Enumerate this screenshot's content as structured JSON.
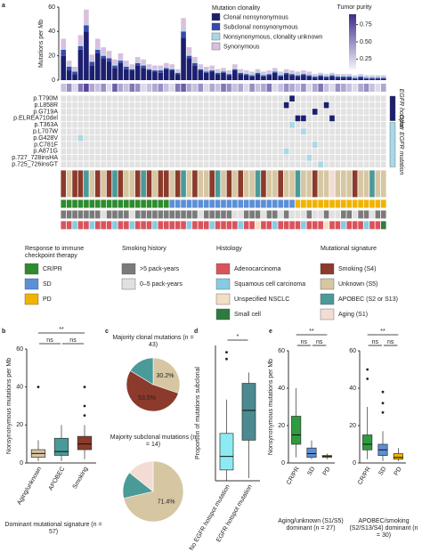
{
  "chart_data": [
    {
      "type": "oncoprint",
      "label": "a",
      "y_label": "Mutations per Mb",
      "ylim": [
        0,
        60
      ],
      "yticks": [
        0,
        20,
        40,
        60
      ],
      "legend_title": "Mutation clonality",
      "series": [
        {
          "name": "Clonal nonsynonymous",
          "color": "#1b1f6e",
          "values": [
            20,
            8,
            5,
            25,
            40,
            12,
            22,
            18,
            15,
            10,
            14,
            9,
            8,
            12,
            10,
            8,
            7,
            6,
            9,
            8,
            5,
            35,
            18,
            12,
            8,
            6,
            7,
            5,
            6,
            4,
            8,
            5,
            4,
            3,
            5,
            3,
            4,
            6,
            3,
            5,
            4,
            3,
            4,
            3,
            2,
            3,
            2,
            3,
            2,
            2,
            2,
            1,
            2,
            1,
            1,
            1,
            1
          ]
        },
        {
          "name": "Subclonal nonsynonymous",
          "color": "#3949ab",
          "values": [
            5,
            3,
            2,
            3,
            5,
            3,
            3,
            2,
            3,
            2,
            2,
            2,
            1,
            2,
            2,
            1,
            1,
            2,
            1,
            1,
            1,
            5,
            2,
            2,
            1,
            1,
            1,
            1,
            1,
            1,
            1,
            1,
            1,
            1,
            1,
            1,
            1,
            1,
            1,
            1,
            1,
            1,
            1,
            1,
            1,
            1,
            1,
            1,
            1,
            1,
            1,
            1,
            1,
            1,
            1,
            1,
            1
          ]
        },
        {
          "name": "Nonsynonymous, clonality unknown",
          "color": "#a9d8e6",
          "values": [
            1,
            1,
            1,
            1,
            1,
            1,
            1,
            1,
            1,
            1,
            1,
            1,
            1,
            1,
            1,
            1,
            1,
            1,
            1,
            1,
            1,
            1,
            1,
            1,
            1,
            1,
            1,
            1,
            1,
            1,
            1,
            1,
            1,
            1,
            1,
            1,
            1,
            1,
            1,
            1,
            1,
            1,
            1,
            1,
            1,
            1,
            1,
            1,
            1,
            1,
            1,
            1,
            1,
            1,
            1,
            1,
            1
          ]
        },
        {
          "name": "Synonymous",
          "color": "#d8c0de",
          "values": [
            8,
            4,
            3,
            8,
            12,
            5,
            8,
            6,
            5,
            4,
            5,
            4,
            3,
            4,
            4,
            3,
            3,
            3,
            3,
            3,
            2,
            10,
            6,
            4,
            3,
            3,
            3,
            2,
            2,
            2,
            3,
            2,
            2,
            2,
            2,
            2,
            2,
            2,
            2,
            2,
            2,
            2,
            2,
            2,
            1,
            1,
            1,
            1,
            1,
            1,
            1,
            1,
            1,
            1,
            1,
            1,
            1
          ]
        }
      ],
      "purity": {
        "title": "Tumor purity",
        "clim": [
          0.1,
          0.9
        ],
        "ticks": [
          0.75,
          {
            "value": 0.5,
            "label": "0.50"
          },
          0.25
        ],
        "values": [
          0.3,
          0.5,
          0.2,
          0.6,
          0.8,
          0.4,
          0.3,
          0.5,
          0.2,
          0.7,
          0.4,
          0.3,
          0.6,
          0.5,
          0.2,
          0.3,
          0.4,
          0.5,
          0.3,
          0.2,
          0.6,
          0.7,
          0.4,
          0.3,
          0.5,
          0.2,
          0.4,
          0.3,
          0.6,
          0.5,
          0.3,
          0.4,
          0.2,
          0.5,
          0.3,
          0.4,
          0.6,
          0.2,
          0.3,
          0.5,
          0.4,
          0.3,
          0.5,
          0.2,
          0.4,
          0.6,
          0.3,
          0.2,
          0.5,
          0.4,
          0.3,
          0.2,
          0.4,
          0.5,
          0.3,
          0.2,
          0.4
        ]
      },
      "mutation_groups": [
        {
          "label": "EGFR hotspot",
          "color": "#1b1f6e"
        },
        {
          "label": "Other EGFR mutation",
          "color": "#a9d8e6"
        }
      ],
      "mutations": [
        {
          "label": "p.T790M",
          "group": 0,
          "samples": [
            40
          ]
        },
        {
          "label": "p.L858R",
          "group": 0,
          "samples": [
            39,
            46
          ]
        },
        {
          "label": "p.G719A",
          "group": 0,
          "samples": [
            44
          ]
        },
        {
          "label": "p.ELREA710del",
          "group": 0,
          "samples": [
            41,
            42,
            47
          ]
        },
        {
          "label": "p.T363A",
          "group": 1,
          "samples": [
            40
          ]
        },
        {
          "label": "p.L707W",
          "group": 1,
          "samples": [
            42
          ]
        },
        {
          "label": "p.G428V",
          "group": 1,
          "samples": [
            3
          ]
        },
        {
          "label": "p.C781F",
          "group": 1,
          "samples": [
            44
          ]
        },
        {
          "label": "p.A871G",
          "group": 1,
          "samples": [
            39
          ]
        },
        {
          "label": "p.727_728insHA",
          "group": 1,
          "samples": [
            43
          ]
        },
        {
          "label": "p.725_726insGT",
          "group": 1,
          "samples": [
            45
          ]
        }
      ],
      "tracks": [
        {
          "legend_title": "Mutational signature",
          "items": [
            {
              "name": "Smoking (S4)",
              "color": "#8b3a2b"
            },
            {
              "name": "Unknown (S5)",
              "color": "#d6c6a2"
            },
            {
              "name": "APOBEC (S2 or S13)",
              "color": "#4a9a98"
            },
            {
              "name": "Aging (S1)",
              "color": "#f3dcd3"
            }
          ],
          "codes": [
            0,
            1,
            0,
            0,
            2,
            1,
            0,
            1,
            0,
            2,
            0,
            1,
            1,
            0,
            2,
            0,
            1,
            0,
            0,
            1,
            0,
            2,
            1,
            0,
            1,
            1,
            0,
            2,
            1,
            0,
            1,
            0,
            1,
            1,
            2,
            0,
            1,
            1,
            0,
            1,
            1,
            2,
            1,
            1,
            0,
            1,
            1,
            3,
            1,
            1,
            1,
            0,
            1,
            1,
            2,
            1,
            1
          ]
        },
        {
          "legend_title": "Response to immune checkpoint therapy",
          "items": [
            {
              "name": "CR/PR",
              "color": "#2e8b2e"
            },
            {
              "name": "SD",
              "color": "#5b8fd6"
            },
            {
              "name": "PD",
              "color": "#f0b400"
            }
          ],
          "codes": [
            0,
            0,
            0,
            0,
            0,
            0,
            0,
            0,
            0,
            0,
            0,
            0,
            0,
            0,
            0,
            0,
            0,
            0,
            0,
            1,
            1,
            1,
            1,
            1,
            1,
            1,
            1,
            1,
            1,
            1,
            1,
            1,
            1,
            1,
            1,
            1,
            1,
            1,
            1,
            1,
            1,
            2,
            2,
            2,
            2,
            2,
            2,
            2,
            2,
            2,
            2,
            2,
            2,
            2,
            2,
            2,
            2
          ]
        },
        {
          "legend_title": "Smoking history",
          "items": [
            {
              "name": ">5 pack-years",
              "color": "#7a7a7a"
            },
            {
              "name": "0–5 pack-years",
              "color": "#e0e0e0"
            }
          ],
          "codes": [
            0,
            0,
            0,
            0,
            0,
            0,
            0,
            1,
            0,
            0,
            0,
            0,
            1,
            0,
            0,
            0,
            0,
            0,
            0,
            0,
            0,
            0,
            0,
            0,
            1,
            0,
            0,
            0,
            0,
            0,
            1,
            1,
            0,
            0,
            0,
            1,
            0,
            0,
            1,
            0,
            1,
            1,
            1,
            0,
            1,
            1,
            0,
            1,
            1,
            0,
            0,
            1,
            0,
            0,
            1,
            0,
            0
          ]
        },
        {
          "legend_title": "Histology",
          "items": [
            {
              "name": "Adenocarcinoma",
              "color": "#d9535b"
            },
            {
              "name": "Squamous cell carcinoma",
              "color": "#86cbe3"
            },
            {
              "name": "Unspecified NSCLC",
              "color": "#f3dec4"
            },
            {
              "name": "Small cell",
              "color": "#2f7a3e"
            }
          ],
          "codes": [
            0,
            0,
            1,
            0,
            0,
            1,
            0,
            0,
            0,
            1,
            0,
            0,
            1,
            0,
            0,
            0,
            1,
            0,
            0,
            0,
            0,
            0,
            1,
            0,
            0,
            0,
            1,
            0,
            0,
            0,
            0,
            1,
            0,
            0,
            2,
            0,
            0,
            1,
            0,
            0,
            0,
            0,
            1,
            0,
            0,
            0,
            2,
            0,
            0,
            1,
            0,
            0,
            0,
            1,
            0,
            0,
            3
          ]
        }
      ]
    },
    {
      "type": "box",
      "label": "b",
      "y_label": "Nonsynonymous mutations per Mb",
      "ylim": [
        0,
        60
      ],
      "yticks": [
        0,
        20,
        40,
        60
      ],
      "caption": "Dominant mutational signature (n = 57)",
      "groups": [
        {
          "name": "Aging/unknown",
          "color": "#d6c6a2",
          "stats": [
            1,
            3,
            5,
            7,
            12
          ],
          "outliers": [
            40
          ]
        },
        {
          "name": "APOBEC",
          "color": "#4a9a98",
          "stats": [
            1,
            4,
            6,
            13,
            20
          ],
          "outliers": []
        },
        {
          "name": "Smoking",
          "color": "#8b3a2b",
          "stats": [
            2,
            7,
            10,
            14,
            20
          ],
          "outliers": [
            25,
            30,
            40
          ]
        }
      ],
      "significance": [
        {
          "label": "ns",
          "pair": [
            0,
            1
          ]
        },
        {
          "label": "ns",
          "pair": [
            1,
            2
          ]
        },
        {
          "label": "**",
          "pair": [
            0,
            2
          ]
        }
      ]
    },
    {
      "type": "pie",
      "label": "c",
      "pies": [
        {
          "title": "Majority clonal mutations (n = 43)",
          "values": [
            30.2,
            53.5,
            16.3
          ],
          "value_labels": [
            "30.2%",
            "53.5%",
            null
          ],
          "colors": [
            "#d6c6a2",
            "#8b3a2b",
            "#4a9a98"
          ]
        },
        {
          "title": "Majority subclonal mutations (n = 14)",
          "values": [
            71.4,
            14.3,
            14.3
          ],
          "value_labels": [
            "71.4%",
            null,
            null
          ],
          "colors": [
            "#d6c6a2",
            "#4a9a98",
            "#f3dcd3"
          ]
        }
      ]
    },
    {
      "type": "box",
      "label": "d",
      "y_label": "Proportion of mutations subclonal",
      "ylim": [
        0,
        1
      ],
      "groups": [
        {
          "name": "No EGFR hotspot mutation",
          "color": "#8eeaf2",
          "stats": [
            0,
            0.08,
            0.18,
            0.35,
            0.6
          ],
          "outliers": [
            0.9,
            0.95
          ]
        },
        {
          "name": "EGFR hotspot mutation",
          "color": "#4a8a90",
          "stats": [
            0.02,
            0.3,
            0.52,
            0.72,
            0.8
          ],
          "outliers": []
        }
      ],
      "significance": [
        {
          "label": "*",
          "pair": [
            0,
            1
          ]
        }
      ]
    },
    {
      "type": "box",
      "label": "e",
      "y_label": "Nonsynonymous mutations per Mb",
      "ylim": [
        0,
        60
      ],
      "yticks": [
        0,
        20,
        40,
        60
      ],
      "caption": "Aging/unknown (S1/S5) dominant (n = 27)",
      "groups": [
        {
          "name": "CR/PR",
          "color": "#2e9b3e",
          "stats": [
            3,
            10,
            15,
            25,
            40
          ],
          "outliers": []
        },
        {
          "name": "SD",
          "color": "#5b8fd6",
          "stats": [
            2,
            3,
            5,
            8,
            12
          ],
          "outliers": []
        },
        {
          "name": "PD",
          "color": "#f0b400",
          "stats": [
            2,
            3,
            3.5,
            4,
            5
          ],
          "outliers": []
        }
      ],
      "significance": [
        {
          "label": "ns",
          "pair": [
            0,
            1
          ]
        },
        {
          "label": "ns",
          "pair": [
            1,
            2
          ]
        },
        {
          "label": "**",
          "pair": [
            0,
            2
          ]
        }
      ]
    },
    {
      "type": "box",
      "ylim": [
        0,
        60
      ],
      "yticks": [
        0,
        20,
        40,
        60
      ],
      "caption": "APOBEC/smoking (S2/S13/S4) dominant (n = 30)",
      "groups": [
        {
          "name": "CR/PR",
          "color": "#2e9b3e",
          "stats": [
            2,
            7,
            10,
            15,
            30
          ],
          "outliers": [
            45,
            50
          ]
        },
        {
          "name": "SD",
          "color": "#5b8fd6",
          "stats": [
            1,
            4,
            7,
            10,
            17
          ],
          "outliers": [
            27,
            32,
            38
          ]
        },
        {
          "name": "PD",
          "color": "#f0b400",
          "stats": [
            1,
            2,
            3,
            5,
            8
          ],
          "outliers": []
        }
      ],
      "significance": [
        {
          "label": "ns",
          "pair": [
            0,
            1
          ]
        },
        {
          "label": "ns",
          "pair": [
            1,
            2
          ]
        },
        {
          "label": "**",
          "pair": [
            0,
            2
          ]
        }
      ]
    }
  ]
}
